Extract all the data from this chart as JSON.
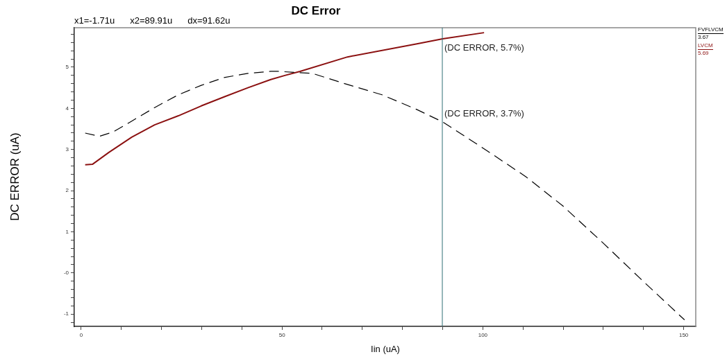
{
  "chart_data": {
    "type": "line",
    "title": "DC Error",
    "xlabel": "Iin (uA)",
    "ylabel": "DC ERROR (uA)",
    "xlim": [
      -1.71,
      153
    ],
    "ylim": [
      -1.3,
      5.96
    ],
    "xticks": [
      0,
      {
        "value": 10,
        "label": null
      },
      {
        "value": 20,
        "label": null
      },
      {
        "value": 30,
        "label": null
      },
      {
        "value": 40,
        "label": null
      },
      50,
      {
        "value": 60,
        "label": null
      },
      {
        "value": 70,
        "label": null
      },
      {
        "value": 80,
        "label": null
      },
      {
        "value": 90,
        "label": null
      },
      100,
      {
        "value": 110,
        "label": null
      },
      {
        "value": 120,
        "label": null
      },
      {
        "value": 130,
        "label": null
      },
      {
        "value": 140,
        "label": null
      },
      150
    ],
    "yticks": [
      {
        "value": -1.2,
        "label": null
      },
      -1,
      {
        "value": -0.8,
        "label": null
      },
      {
        "value": -0.6,
        "label": null
      },
      {
        "value": -0.4,
        "label": null
      },
      {
        "value": -0.2,
        "label": null
      },
      {
        "value": 0,
        "label": "-0"
      },
      {
        "value": 0.2,
        "label": null
      },
      {
        "value": 0.4,
        "label": null
      },
      {
        "value": 0.6,
        "label": null
      },
      {
        "value": 0.8,
        "label": null
      },
      1,
      {
        "value": 1.2,
        "label": null
      },
      {
        "value": 1.4,
        "label": null
      },
      {
        "value": 1.6,
        "label": null
      },
      {
        "value": 1.8,
        "label": null
      },
      2,
      {
        "value": 2.2,
        "label": null
      },
      {
        "value": 2.4,
        "label": null
      },
      {
        "value": 2.6,
        "label": null
      },
      {
        "value": 2.8,
        "label": null
      },
      3,
      {
        "value": 3.2,
        "label": null
      },
      {
        "value": 3.4,
        "label": null
      },
      {
        "value": 3.6,
        "label": null
      },
      {
        "value": 3.8,
        "label": null
      },
      4,
      {
        "value": 4.2,
        "label": null
      },
      {
        "value": 4.4,
        "label": null
      },
      {
        "value": 4.6,
        "label": null
      },
      {
        "value": 4.8,
        "label": null
      },
      5,
      {
        "value": 5.2,
        "label": null
      },
      {
        "value": 5.4,
        "label": null
      },
      {
        "value": 5.6,
        "label": null
      },
      {
        "value": 5.8,
        "label": null
      }
    ],
    "grid": false,
    "legend": "right",
    "marker": "none",
    "series": [
      {
        "name": "FVFLVCM",
        "color": "#000000",
        "line_style": "dashed",
        "x": [
          1,
          4.5,
          8,
          12.6,
          18.3,
          24.2,
          29.9,
          35.6,
          41.5,
          47.2,
          49,
          57.6,
          66.3,
          74.9,
          83.6,
          90,
          100.9,
          110.7,
          119.9,
          129.8,
          140.1,
          150.2
        ],
        "values": [
          3.4,
          3.32,
          3.43,
          3.69,
          4.02,
          4.33,
          4.56,
          4.75,
          4.85,
          4.9,
          4.9,
          4.85,
          4.58,
          4.33,
          3.97,
          3.67,
          2.98,
          2.34,
          1.63,
          0.74,
          -0.22,
          -1.14
        ]
      },
      {
        "name": "LVCM",
        "color": "#8b1010",
        "line_style": "solid",
        "x": [
          1,
          2.8,
          6.9,
          12.6,
          18.3,
          24.2,
          29.9,
          35.6,
          41.5,
          47.2,
          50.7,
          54.5,
          66.3,
          83.6,
          90,
          100.3
        ],
        "values": [
          2.63,
          2.64,
          2.93,
          3.3,
          3.6,
          3.82,
          4.06,
          4.28,
          4.5,
          4.7,
          4.8,
          4.9,
          5.25,
          5.57,
          5.69,
          5.84
        ]
      }
    ],
    "ref_lines": [
      {
        "axis": "x",
        "value": 89.91,
        "color": "#2e6e74"
      }
    ],
    "annotations": [
      "x1=-1.71u",
      "x2=89.91u",
      "dx=91.62u",
      {
        "text": "(DC ERROR, 5.7%)",
        "x": 89.91,
        "y": 5.69
      },
      {
        "text": "(DC ERROR, 3.7%)",
        "x": 89.91,
        "y": 3.67
      },
      "3.67",
      "5.69"
    ]
  }
}
